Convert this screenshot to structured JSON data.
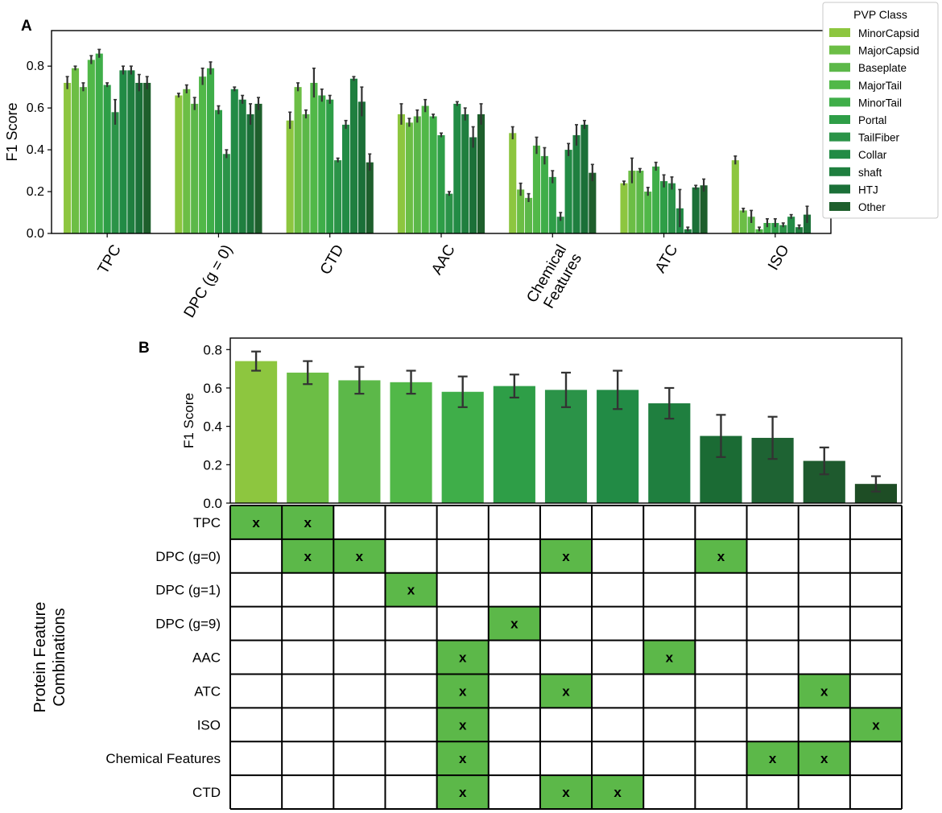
{
  "panel_labels": {
    "a": "A",
    "b": "B"
  },
  "colors": {
    "classes": [
      "#8dc63f",
      "#6cbe45",
      "#5cb849",
      "#51b848",
      "#3fae49",
      "#2e9e47",
      "#2b9348",
      "#228b45",
      "#1f7f3f",
      "#1b7038",
      "#1e5f2c"
    ],
    "panel_b_bars": [
      "#8dc63f",
      "#6cbe45",
      "#5cb849",
      "#51b848",
      "#3fae49",
      "#2e9e47",
      "#2b9348",
      "#228b45",
      "#1f7f3f",
      "#1b6b34",
      "#1e6333",
      "#1e5a2e",
      "#1e4d25"
    ],
    "cell_fill": "#5cb849",
    "error_bar": "#333333"
  },
  "chart_data": [
    {
      "type": "bar",
      "title": "",
      "xlabel": "",
      "ylabel": "F1 Score",
      "ylim": [
        0,
        0.97
      ],
      "yticks": [
        "0.0",
        "0.2",
        "0.4",
        "0.6",
        "0.8"
      ],
      "legend": {
        "title": "PVP Class",
        "placement": "top-right"
      },
      "categories": [
        "TPC",
        "DPC (g = 0)",
        "CTD",
        "AAC",
        "Chemical\nFeatures",
        "ATC",
        "ISO"
      ],
      "series": [
        {
          "name": "MinorCapsid",
          "values": [
            0.72,
            0.66,
            0.54,
            0.57,
            0.48,
            0.24,
            0.35
          ],
          "errors": [
            0.03,
            0.01,
            0.04,
            0.05,
            0.03,
            0.01,
            0.02
          ]
        },
        {
          "name": "MajorCapsid",
          "values": [
            0.79,
            0.69,
            0.7,
            0.53,
            0.21,
            0.3,
            0.11
          ],
          "errors": [
            0.01,
            0.02,
            0.02,
            0.02,
            0.03,
            0.06,
            0.01
          ]
        },
        {
          "name": "Baseplate",
          "values": [
            0.7,
            0.62,
            0.57,
            0.56,
            0.17,
            0.3,
            0.08
          ],
          "errors": [
            0.02,
            0.03,
            0.02,
            0.03,
            0.02,
            0.01,
            0.03
          ]
        },
        {
          "name": "MajorTail",
          "values": [
            0.83,
            0.75,
            0.72,
            0.61,
            0.42,
            0.2,
            0.02
          ],
          "errors": [
            0.02,
            0.04,
            0.07,
            0.03,
            0.04,
            0.02,
            0.01
          ]
        },
        {
          "name": "MinorTail",
          "values": [
            0.86,
            0.79,
            0.66,
            0.56,
            0.37,
            0.32,
            0.05
          ],
          "errors": [
            0.02,
            0.03,
            0.03,
            0.01,
            0.04,
            0.02,
            0.02
          ]
        },
        {
          "name": "Portal",
          "values": [
            0.71,
            0.59,
            0.64,
            0.47,
            0.27,
            0.25,
            0.05
          ],
          "errors": [
            0.01,
            0.02,
            0.02,
            0.01,
            0.03,
            0.03,
            0.02
          ]
        },
        {
          "name": "TailFiber",
          "values": [
            0.58,
            0.38,
            0.35,
            0.19,
            0.08,
            0.24,
            0.04
          ],
          "errors": [
            0.06,
            0.02,
            0.01,
            0.01,
            0.02,
            0.03,
            0.01
          ]
        },
        {
          "name": "Collar",
          "values": [
            0.78,
            0.69,
            0.52,
            0.62,
            0.4,
            0.12,
            0.08
          ],
          "errors": [
            0.02,
            0.01,
            0.02,
            0.01,
            0.03,
            0.09,
            0.01
          ]
        },
        {
          "name": "shaft",
          "values": [
            0.78,
            0.64,
            0.74,
            0.57,
            0.47,
            0.02,
            0.03
          ],
          "errors": [
            0.02,
            0.02,
            0.01,
            0.03,
            0.05,
            0.01,
            0.01
          ]
        },
        {
          "name": "HTJ",
          "values": [
            0.72,
            0.57,
            0.63,
            0.46,
            0.52,
            0.22,
            0.09
          ],
          "errors": [
            0.04,
            0.05,
            0.07,
            0.05,
            0.02,
            0.01,
            0.04
          ]
        },
        {
          "name": "Other",
          "values": [
            0.72,
            0.62,
            0.34,
            0.57,
            0.29,
            0.23,
            0.0
          ],
          "errors": [
            0.03,
            0.03,
            0.04,
            0.05,
            0.04,
            0.03,
            0.0
          ]
        }
      ]
    },
    {
      "type": "bar",
      "title": "",
      "xlabel": "",
      "ylabel": "F1 Score",
      "ylim": [
        0,
        0.86
      ],
      "yticks": [
        "0.0",
        "0.2",
        "0.4",
        "0.6",
        "0.8"
      ],
      "values": [
        0.74,
        0.68,
        0.64,
        0.63,
        0.58,
        0.61,
        0.59,
        0.59,
        0.52,
        0.35,
        0.34,
        0.22,
        0.1
      ],
      "errors": [
        0.05,
        0.06,
        0.07,
        0.06,
        0.08,
        0.06,
        0.09,
        0.1,
        0.08,
        0.11,
        0.11,
        0.07,
        0.04
      ]
    }
  ],
  "matrix": {
    "ylabel_line1": "Protein Feature",
    "ylabel_line2": "Combinations",
    "mark": "x",
    "rows": [
      "TPC",
      "DPC (g=0)",
      "DPC (g=1)",
      "DPC (g=9)",
      "AAC",
      "ATC",
      "ISO",
      "Chemical Features",
      "CTD"
    ],
    "marks": [
      [
        0,
        1
      ],
      [
        1,
        2,
        6,
        9
      ],
      [
        3
      ],
      [
        5
      ],
      [
        4,
        8
      ],
      [
        4,
        6,
        11
      ],
      [
        4,
        12
      ],
      [
        4,
        10,
        11
      ],
      [
        4,
        6,
        7
      ]
    ]
  }
}
